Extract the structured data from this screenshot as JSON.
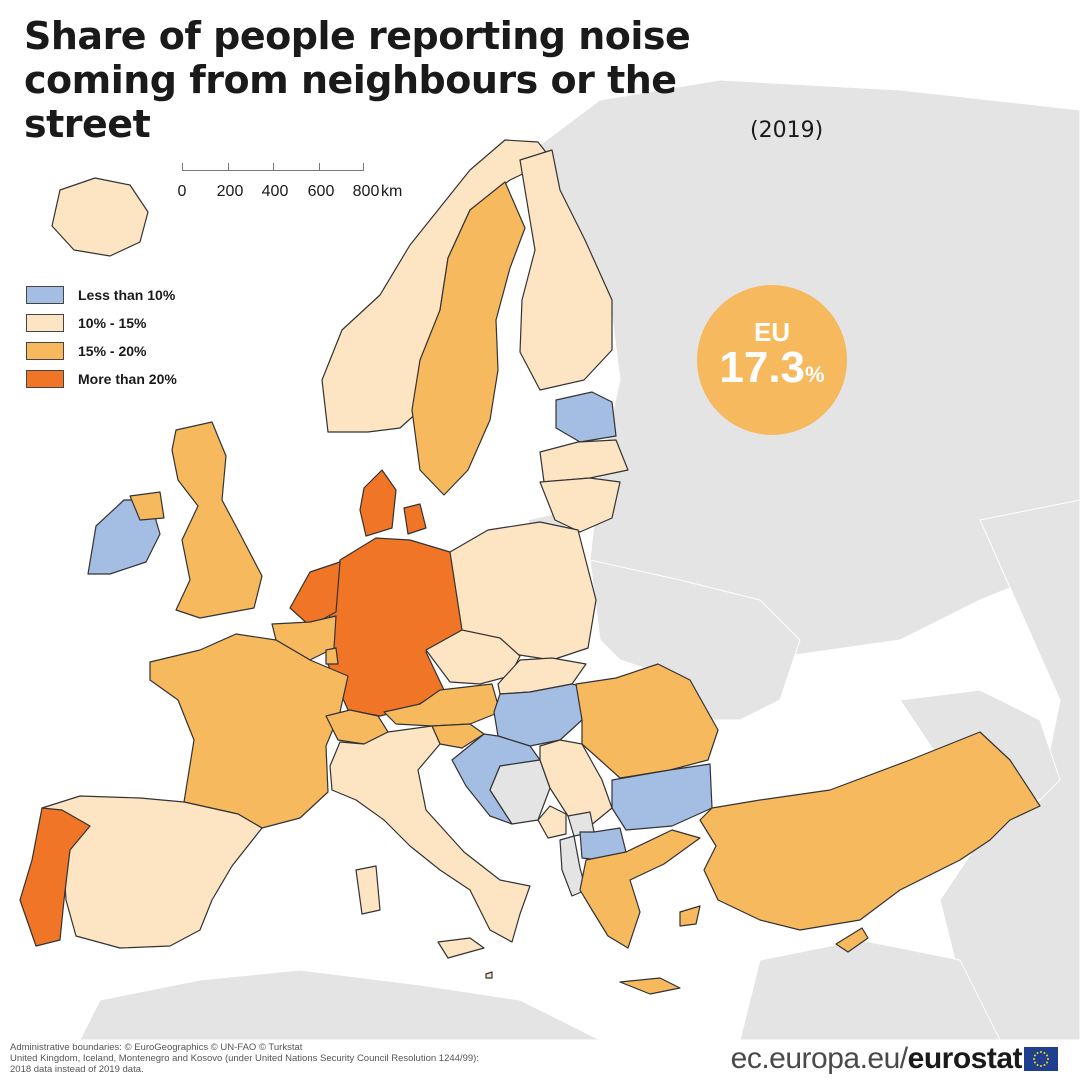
{
  "title": {
    "main": "Share of people reporting noise coming from neighbours or the street",
    "year": "(2019)"
  },
  "scale": {
    "ticks": [
      "0",
      "200",
      "400",
      "600",
      "800"
    ],
    "unit": "km"
  },
  "legend": [
    {
      "label": "Less than 10%",
      "color": "#a3bde3"
    },
    {
      "label": "10% - 15%",
      "color": "#fde4c2"
    },
    {
      "label": "15% - 20%",
      "color": "#f6b95e"
    },
    {
      "label": "More than 20%",
      "color": "#f07526"
    }
  ],
  "colors": {
    "no_data": "#e4e4e4",
    "sea": "#ffffff",
    "border": "#333333"
  },
  "eu_average": {
    "label": "EU",
    "value": "17.3",
    "unit": "%"
  },
  "map_data": {
    "countries": [
      {
        "name": "Iceland",
        "class": "10% - 15%"
      },
      {
        "name": "Ireland",
        "class": "Less than 10%"
      },
      {
        "name": "United Kingdom",
        "class": "15% - 20%"
      },
      {
        "name": "Portugal",
        "class": "More than 20%"
      },
      {
        "name": "Spain",
        "class": "10% - 15%"
      },
      {
        "name": "France",
        "class": "15% - 20%"
      },
      {
        "name": "Belgium",
        "class": "15% - 20%"
      },
      {
        "name": "Luxembourg",
        "class": "15% - 20%"
      },
      {
        "name": "Netherlands",
        "class": "More than 20%"
      },
      {
        "name": "Germany",
        "class": "More than 20%"
      },
      {
        "name": "Denmark",
        "class": "More than 20%"
      },
      {
        "name": "Norway",
        "class": "10% - 15%"
      },
      {
        "name": "Sweden",
        "class": "15% - 20%"
      },
      {
        "name": "Finland",
        "class": "10% - 15%"
      },
      {
        "name": "Estonia",
        "class": "Less than 10%"
      },
      {
        "name": "Latvia",
        "class": "10% - 15%"
      },
      {
        "name": "Lithuania",
        "class": "10% - 15%"
      },
      {
        "name": "Poland",
        "class": "10% - 15%"
      },
      {
        "name": "Czechia",
        "class": "10% - 15%"
      },
      {
        "name": "Slovakia",
        "class": "10% - 15%"
      },
      {
        "name": "Austria",
        "class": "15% - 20%"
      },
      {
        "name": "Switzerland",
        "class": "15% - 20%"
      },
      {
        "name": "Italy",
        "class": "10% - 15%"
      },
      {
        "name": "Slovenia",
        "class": "15% - 20%"
      },
      {
        "name": "Croatia",
        "class": "Less than 10%"
      },
      {
        "name": "Hungary",
        "class": "Less than 10%"
      },
      {
        "name": "Romania",
        "class": "15% - 20%"
      },
      {
        "name": "Bulgaria",
        "class": "Less than 10%"
      },
      {
        "name": "Serbia",
        "class": "10% - 15%"
      },
      {
        "name": "Montenegro",
        "class": "10% - 15%"
      },
      {
        "name": "North Macedonia",
        "class": "Less than 10%"
      },
      {
        "name": "Albania",
        "class": "no data"
      },
      {
        "name": "Bosnia and Herzegovina",
        "class": "no data"
      },
      {
        "name": "Kosovo",
        "class": "no data"
      },
      {
        "name": "Greece",
        "class": "15% - 20%"
      },
      {
        "name": "Turkey",
        "class": "15% - 20%"
      },
      {
        "name": "Malta",
        "class": "10% - 15%"
      },
      {
        "name": "Cyprus",
        "class": "15% - 20%"
      }
    ]
  },
  "footer": {
    "notes": [
      "Administrative boundaries: © EuroGeographics © UN-FAO © Turkstat",
      "United Kingdom, Iceland, Montenegro and Kosovo (under United Nations Security Council Resolution 1244/99):",
      "2018 data instead of 2019 data."
    ],
    "brand_prefix": "ec.europa.eu/",
    "brand_name": "eurostat"
  }
}
